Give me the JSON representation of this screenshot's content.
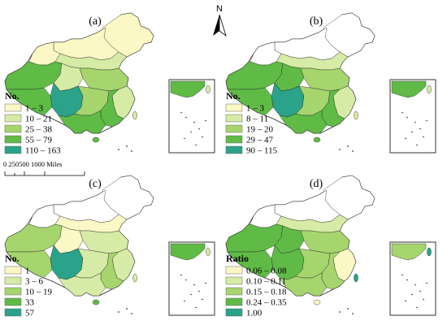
{
  "colors": {
    "c0": "#ffffff",
    "c1": "#fbf8c5",
    "c2": "#d6eba5",
    "c3": "#a6d56e",
    "c4": "#5fbb46",
    "c5": "#2aa38a",
    "outline": "#222222"
  },
  "north_arrow": {
    "label": "N"
  },
  "scale_bar": {
    "label": "0  250500   1000 Miles"
  },
  "panels": [
    {
      "id": "a",
      "label": "(a)",
      "legend_title": "No.",
      "legend": [
        {
          "label": "1 – 3",
          "color": "#fbf8c5"
        },
        {
          "label": "10 – 21",
          "color": "#d6eba5"
        },
        {
          "label": "25 – 38",
          "color": "#a6d56e"
        },
        {
          "label": "55 – 79",
          "color": "#5fbb46"
        },
        {
          "label": "110 – 163",
          "color": "#2aa38a"
        }
      ]
    },
    {
      "id": "b",
      "label": "(b)",
      "legend_title": "No.",
      "legend": [
        {
          "label": "1 – 3",
          "color": "#fbf8c5"
        },
        {
          "label": "8 – 11",
          "color": "#d6eba5"
        },
        {
          "label": "19 – 20",
          "color": "#a6d56e"
        },
        {
          "label": "29 – 47",
          "color": "#5fbb46"
        },
        {
          "label": "90 – 115",
          "color": "#2aa38a"
        }
      ]
    },
    {
      "id": "c",
      "label": "(c)",
      "legend_title": "No.",
      "legend": [
        {
          "label": "1",
          "color": "#fbf8c5"
        },
        {
          "label": "3 – 6",
          "color": "#d6eba5"
        },
        {
          "label": "10 – 19",
          "color": "#a6d56e"
        },
        {
          "label": "33",
          "color": "#5fbb46"
        },
        {
          "label": "57",
          "color": "#2aa38a"
        }
      ]
    },
    {
      "id": "d",
      "label": "(d)",
      "legend_title": "Ratio",
      "legend": [
        {
          "label": "0.06 – 0.08",
          "color": "#fbf8c5"
        },
        {
          "label": "0.10 – 0.11",
          "color": "#d6eba5"
        },
        {
          "label": "0.15 – 0.18",
          "color": "#a6d56e"
        },
        {
          "label": "0.24 – 0.35",
          "color": "#5fbb46"
        },
        {
          "label": "1.00",
          "color": "#2aa38a"
        }
      ]
    }
  ]
}
